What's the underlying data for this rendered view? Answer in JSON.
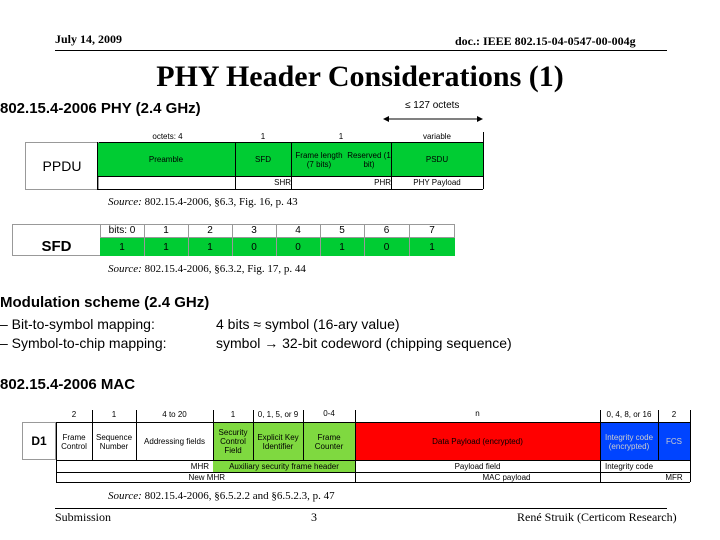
{
  "header": {
    "date": "July 14, 2009",
    "doc_id": "doc.: IEEE 802.15-04-0547-00-004g"
  },
  "title": "PHY Header Considerations (1)",
  "phy_section": {
    "heading": "802.15.4-2006 PHY (2.4 GHz)",
    "max_note": "≤ 127 octets",
    "ppdu": {
      "row_label": "PPDU",
      "octets": [
        "octets: 4",
        "1",
        "1",
        "variable"
      ],
      "fields": [
        "Preamble",
        "SFD",
        "Frame length (7 bits)",
        "Reserved (1 bit)",
        "PSDU"
      ],
      "groups": [
        "SHR",
        "PHR",
        "PHY Payload"
      ]
    },
    "ppdu_source_italic": "Source:",
    "ppdu_source": "802.15.4-2006, §6.3, Fig. 16, p. 43",
    "sfd": {
      "row_label": "SFD",
      "bits_label": "bits: 0",
      "bit_numbers": [
        "1",
        "2",
        "3",
        "4",
        "5",
        "6",
        "7"
      ],
      "bit_values": [
        "1",
        "1",
        "1",
        "0",
        "0",
        "1",
        "0",
        "1"
      ]
    },
    "sfd_source_italic": "Source:",
    "sfd_source": "802.15.4-2006, §6.3.2, Fig. 17, p. 44"
  },
  "modulation": {
    "heading": "Modulation scheme (2.4 GHz)",
    "rows": [
      {
        "left": "– Bit-to-symbol mapping:",
        "right": "4 bits ≈ symbol (16-ary value)"
      },
      {
        "left": "– Symbol-to-chip mapping:",
        "right": "symbol → 32-bit codeword (chipping sequence)"
      }
    ]
  },
  "mac_section": {
    "heading": "802.15.4-2006 MAC",
    "row_label": "D1",
    "octets": [
      "2",
      "1",
      "4 to 20",
      "1",
      "0, 1, 5, or 9",
      "0-4",
      "n",
      "0, 4, 8, or 16",
      "2"
    ],
    "fields": [
      "Frame Control",
      "Sequence Number",
      "Addressing fields",
      "Security Control Field",
      "Explicit Key Identifier",
      "Frame Counter",
      "Data Payload (encrypted)",
      "Integrity code (encrypted)",
      "FCS"
    ],
    "groups": [
      "MHR",
      "Auxiliary security frame header",
      "Payload field",
      "Integrity code"
    ],
    "groups2": [
      "New MHR",
      "MAC payload",
      "MFR"
    ],
    "source_italic": "Source:",
    "source": "802.15.4-2006, §6.5.2.2 and §6.5.2.3, p. 47"
  },
  "footer": {
    "left": "Submission",
    "page": "3",
    "right": "René Struik (Certicom Research)"
  },
  "colors": {
    "green": "#00cc33",
    "light_green": "#7fd940",
    "red": "#ff0000",
    "blue": "#0044ff"
  }
}
